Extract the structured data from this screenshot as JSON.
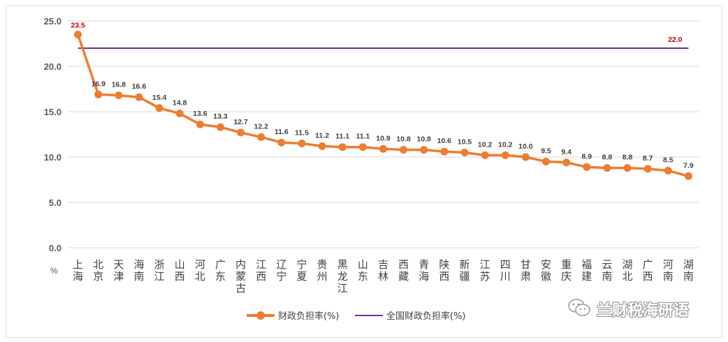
{
  "chart_data": {
    "type": "line",
    "categories": [
      "上海",
      "北京",
      "天津",
      "海南",
      "浙江",
      "山西",
      "河北",
      "广东",
      "内蒙古",
      "江西",
      "辽宁",
      "宁夏",
      "贵州",
      "黑龙江",
      "山东",
      "吉林",
      "西藏",
      "青海",
      "陕西",
      "新疆",
      "江苏",
      "四川",
      "甘肃",
      "安徽",
      "重庆",
      "福建",
      "云南",
      "湖北",
      "广西",
      "河南",
      "湖南"
    ],
    "series": [
      {
        "name": "财政负担率(%)",
        "color": "#ed7d31",
        "values": [
          23.5,
          16.9,
          16.8,
          16.6,
          15.4,
          14.8,
          13.6,
          13.3,
          12.7,
          12.2,
          11.6,
          11.5,
          11.2,
          11.1,
          11.1,
          10.9,
          10.8,
          10.8,
          10.6,
          10.5,
          10.2,
          10.2,
          10.0,
          9.5,
          9.4,
          8.9,
          8.8,
          8.8,
          8.7,
          8.5,
          7.9
        ],
        "labels": [
          "23.5",
          "16.9",
          "16.8",
          "16.6",
          "15.4",
          "14.8",
          "13.6",
          "13.3",
          "12.7",
          "12.2",
          "11.6",
          "11.5",
          "11.2",
          "11.1",
          "11.1",
          "10.9",
          "10.8",
          "10.8",
          "10.6",
          "10.5",
          "10.2",
          "10.2",
          "10.0",
          "9.5",
          "9.4",
          "8.9",
          "8.8",
          "8.8",
          "8.7",
          "8.5",
          "7.9"
        ]
      },
      {
        "name": "全国财政负担率(%)",
        "color": "#7030a0",
        "value": 22.0,
        "label": "22.0"
      }
    ],
    "y_ticks": [
      "0.0",
      "5.0",
      "10.0",
      "15.0",
      "20.0",
      "25.0"
    ],
    "ylim": [
      0,
      25
    ],
    "y_unit": "%",
    "grid": true,
    "legend_position": "bottom"
  },
  "watermark": {
    "text": "兰财税海研语",
    "icon": "wechat-icon"
  }
}
